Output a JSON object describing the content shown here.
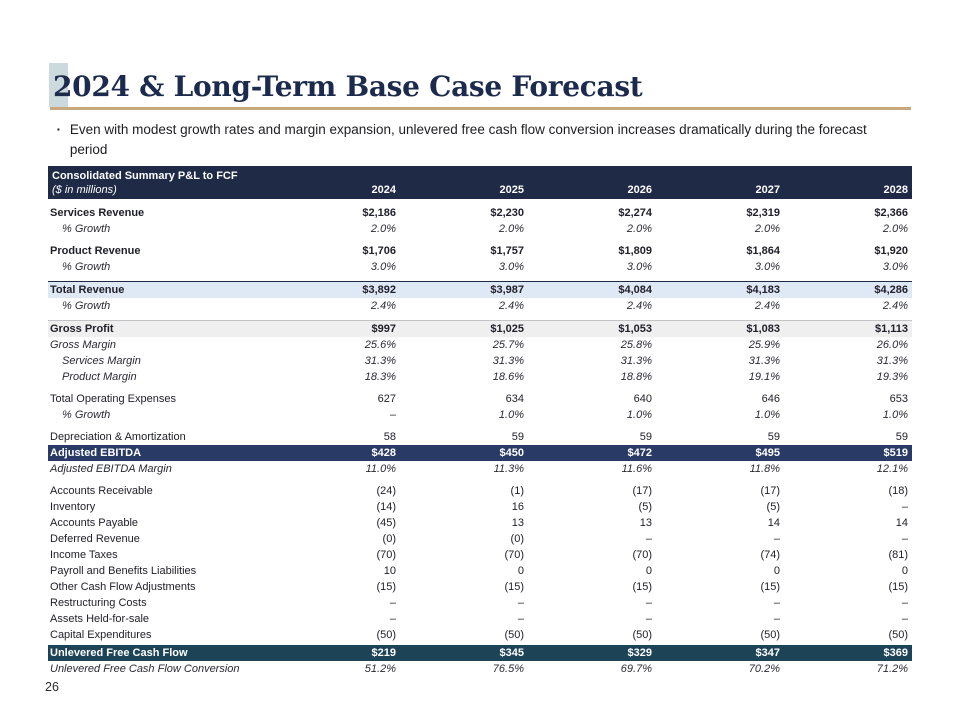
{
  "slide": {
    "title": "2024 & Long-Term Base Case Forecast",
    "bullet_marker": "▪",
    "bullet": "Even with modest growth rates and margin expansion, unlevered free cash flow conversion increases dramatically during the forecast period",
    "page_number": "26"
  },
  "colors": {
    "title_navy": "#1b2a4d",
    "underline_gold": "#c7a97c",
    "highlight_box": "#ccd9dd",
    "header_navy": "#1f2a47",
    "ebitda_navy": "#2a3a66",
    "ufcf_steel": "#1d4356",
    "total_revenue_bg": "#dfe8f5",
    "gross_profit_bg": "#efeff0"
  },
  "table": {
    "header_line1": "Consolidated Summary P&L to FCF",
    "header_line2": "($ in millions)",
    "years": [
      "2024",
      "2025",
      "2026",
      "2027",
      "2028"
    ],
    "rows": [
      {
        "label": "Services Revenue",
        "values": [
          "$2,186",
          "$2,230",
          "$2,274",
          "$2,319",
          "$2,366"
        ],
        "style": "bold",
        "gap": true
      },
      {
        "label": "% Growth",
        "values": [
          "2.0%",
          "2.0%",
          "2.0%",
          "2.0%",
          "2.0%"
        ],
        "style": "italic",
        "indent": true
      },
      {
        "label": "Product Revenue",
        "values": [
          "$1,706",
          "$1,757",
          "$1,809",
          "$1,864",
          "$1,920"
        ],
        "style": "bold",
        "gap": true
      },
      {
        "label": "% Growth",
        "values": [
          "3.0%",
          "3.0%",
          "3.0%",
          "3.0%",
          "3.0%"
        ],
        "style": "italic",
        "indent": true
      },
      {
        "label": "Total Revenue",
        "values": [
          "$3,892",
          "$3,987",
          "$4,084",
          "$4,183",
          "$4,286"
        ],
        "style": "bold",
        "bg": "blue",
        "gap": true
      },
      {
        "label": "% Growth",
        "values": [
          "2.4%",
          "2.4%",
          "2.4%",
          "2.4%",
          "2.4%"
        ],
        "style": "italic",
        "indent": true
      },
      {
        "label": "Gross Profit",
        "values": [
          "$997",
          "$1,025",
          "$1,053",
          "$1,083",
          "$1,113"
        ],
        "style": "bold",
        "bg": "gray",
        "gap": true
      },
      {
        "label": "Gross Margin",
        "values": [
          "25.6%",
          "25.7%",
          "25.8%",
          "25.9%",
          "26.0%"
        ],
        "style": "italic"
      },
      {
        "label": "Services Margin",
        "values": [
          "31.3%",
          "31.3%",
          "31.3%",
          "31.3%",
          "31.3%"
        ],
        "style": "italic",
        "indent": true
      },
      {
        "label": "Product Margin",
        "values": [
          "18.3%",
          "18.6%",
          "18.8%",
          "19.1%",
          "19.3%"
        ],
        "style": "italic",
        "indent": true
      },
      {
        "label": "Total Operating Expenses",
        "values": [
          "627",
          "634",
          "640",
          "646",
          "653"
        ],
        "gap": true
      },
      {
        "label": "% Growth",
        "values": [
          "–",
          "1.0%",
          "1.0%",
          "1.0%",
          "1.0%"
        ],
        "style": "italic",
        "indent": true
      },
      {
        "label": "Depreciation & Amortization",
        "values": [
          "58",
          "59",
          "59",
          "59",
          "59"
        ],
        "gap": true
      },
      {
        "label": "Adjusted EBITDA",
        "values": [
          "$428",
          "$450",
          "$472",
          "$495",
          "$519"
        ],
        "bg": "navy"
      },
      {
        "label": "Adjusted EBITDA Margin",
        "values": [
          "11.0%",
          "11.3%",
          "11.6%",
          "11.8%",
          "12.1%"
        ],
        "style": "italic"
      },
      {
        "label": "Accounts Receivable",
        "values": [
          "(24)",
          "(1)",
          "(17)",
          "(17)",
          "(18)"
        ],
        "gap": true
      },
      {
        "label": "Inventory",
        "values": [
          "(14)",
          "16",
          "(5)",
          "(5)",
          "–"
        ]
      },
      {
        "label": "Accounts Payable",
        "values": [
          "(45)",
          "13",
          "13",
          "14",
          "14"
        ]
      },
      {
        "label": "Deferred Revenue",
        "values": [
          "(0)",
          "(0)",
          "–",
          "–",
          "–"
        ]
      },
      {
        "label": "Income Taxes",
        "values": [
          "(70)",
          "(70)",
          "(70)",
          "(74)",
          "(81)"
        ]
      },
      {
        "label": "Payroll and Benefits Liabilities",
        "values": [
          "10",
          "0",
          "0",
          "0",
          "0"
        ]
      },
      {
        "label": "Other Cash Flow Adjustments",
        "values": [
          "(15)",
          "(15)",
          "(15)",
          "(15)",
          "(15)"
        ]
      },
      {
        "label": "Restructuring Costs",
        "values": [
          "–",
          "–",
          "–",
          "–",
          "–"
        ]
      },
      {
        "label": "Assets Held-for-sale",
        "values": [
          "–",
          "–",
          "–",
          "–",
          "–"
        ]
      },
      {
        "label": "Capital Expenditures",
        "values": [
          "(50)",
          "(50)",
          "(50)",
          "(50)",
          "(50)"
        ]
      },
      {
        "label": "Unlevered Free Cash Flow",
        "values": [
          "$219",
          "$345",
          "$329",
          "$347",
          "$369"
        ],
        "bg": "steel",
        "gap_sm": true
      },
      {
        "label": "Unlevered Free Cash Flow Conversion",
        "values": [
          "51.2%",
          "76.5%",
          "69.7%",
          "70.2%",
          "71.2%"
        ],
        "style": "italic"
      }
    ]
  }
}
